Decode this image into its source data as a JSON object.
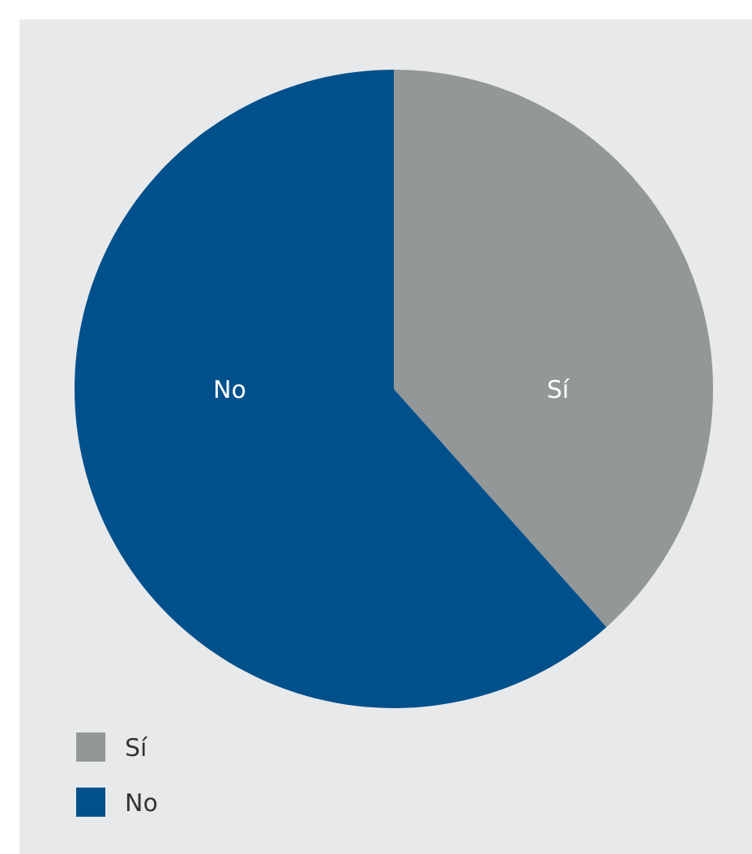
{
  "chart_data": {
    "type": "pie",
    "categories": [
      "Sí",
      "No"
    ],
    "values": [
      38.4,
      61.6
    ],
    "colors": [
      "#939798",
      "#00508c"
    ],
    "legend": "bottom left"
  }
}
